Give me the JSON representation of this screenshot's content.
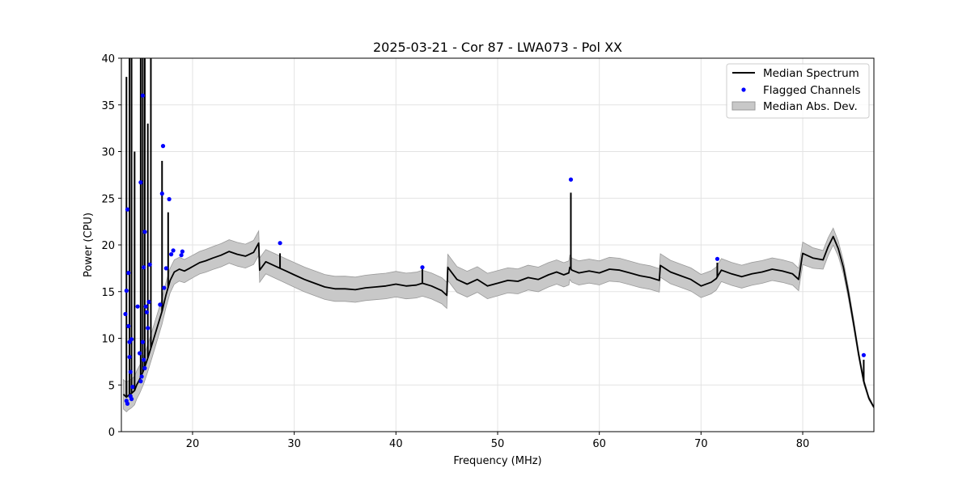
{
  "chart_data": {
    "type": "line",
    "title": "2025-03-21 - Cor 87 - LWA073 - Pol XX",
    "xlabel": "Frequency (MHz)",
    "ylabel": "Power (CPU)",
    "xlim": [
      13.0,
      87.0
    ],
    "ylim": [
      0,
      40
    ],
    "xticks": [
      20,
      30,
      40,
      50,
      60,
      70,
      80
    ],
    "yticks": [
      0,
      5,
      10,
      15,
      20,
      25,
      30,
      35,
      40
    ],
    "grid": true,
    "legend_position": "top-right",
    "legend": [
      "Median Spectrum",
      "Flagged Channels",
      "Median Abs. Dev."
    ],
    "colors": {
      "median": "#000000",
      "flagged": "#0000ff",
      "band": "#c8c8c8",
      "band_edge": "#9a9a9a"
    },
    "series": [
      {
        "name": "Median Spectrum",
        "x": [
          13.2,
          13.5,
          13.7,
          14.0,
          14.3,
          14.5,
          14.8,
          15.2,
          15.6,
          16.0,
          16.5,
          17.0,
          17.4,
          17.8,
          18.2,
          18.7,
          19.2,
          19.7,
          20.2,
          20.7,
          21.3,
          22.0,
          22.8,
          23.6,
          24.4,
          25.2,
          26.0,
          26.5,
          26.6,
          27.2,
          28.0,
          28.6,
          29.2,
          30.0,
          31.0,
          32.0,
          33.0,
          34.0,
          35.0,
          36.0,
          37.0,
          38.0,
          39.0,
          40.0,
          41.0,
          42.0,
          42.6,
          43.5,
          44.5,
          45.0,
          45.1,
          46.0,
          47.0,
          48.0,
          49.0,
          50.0,
          51.0,
          52.0,
          53.0,
          54.0,
          55.0,
          55.8,
          56.5,
          57.0,
          57.1,
          57.3,
          58.0,
          59.0,
          60.0,
          61.0,
          62.0,
          63.0,
          64.0,
          65.0,
          65.9,
          66.0,
          67.0,
          68.0,
          69.0,
          70.0,
          71.0,
          71.5,
          72.0,
          73.0,
          74.0,
          75.0,
          76.0,
          77.0,
          78.0,
          79.0,
          79.6,
          80.0,
          81.0,
          82.0,
          82.5,
          83.0,
          83.5,
          84.0,
          84.5,
          85.0,
          85.5,
          86.0,
          86.5,
          87.0
        ],
        "y": [
          4.0,
          3.7,
          3.9,
          4.1,
          4.4,
          5.0,
          5.6,
          6.6,
          7.9,
          9.3,
          11.1,
          12.9,
          14.7,
          16.2,
          17.1,
          17.4,
          17.2,
          17.5,
          17.8,
          18.1,
          18.3,
          18.6,
          18.9,
          19.3,
          19.0,
          18.8,
          19.2,
          20.2,
          17.3,
          18.2,
          17.8,
          17.5,
          17.2,
          16.8,
          16.3,
          15.9,
          15.5,
          15.3,
          15.3,
          15.2,
          15.4,
          15.5,
          15.6,
          15.8,
          15.6,
          15.7,
          15.9,
          15.6,
          15.1,
          14.6,
          17.6,
          16.3,
          15.8,
          16.3,
          15.6,
          15.9,
          16.2,
          16.1,
          16.5,
          16.3,
          16.8,
          17.1,
          16.8,
          17.0,
          17.6,
          17.3,
          17.0,
          17.2,
          17.0,
          17.4,
          17.3,
          17.0,
          16.7,
          16.5,
          16.2,
          17.8,
          17.1,
          16.7,
          16.3,
          15.6,
          16.0,
          16.4,
          17.3,
          16.9,
          16.6,
          16.9,
          17.1,
          17.4,
          17.2,
          16.9,
          16.3,
          19.1,
          18.6,
          18.4,
          19.8,
          20.9,
          19.6,
          17.6,
          14.8,
          11.6,
          8.3,
          5.4,
          3.6,
          2.6
        ],
        "spikes": [
          [
            13.5,
            38
          ],
          [
            13.8,
            40
          ],
          [
            14.0,
            40
          ],
          [
            14.3,
            30
          ],
          [
            14.9,
            40
          ],
          [
            15.1,
            40
          ],
          [
            15.3,
            40
          ],
          [
            15.6,
            33
          ],
          [
            15.9,
            40
          ],
          [
            17.0,
            29
          ],
          [
            17.6,
            23.5
          ],
          [
            28.6,
            19.1
          ],
          [
            42.6,
            17.5
          ],
          [
            57.2,
            25.6
          ],
          [
            71.6,
            18.1
          ],
          [
            86.0,
            7.7
          ]
        ]
      },
      {
        "name": "Flagged Channels",
        "points": [
          [
            13.4,
            12.6
          ],
          [
            13.5,
            15.1
          ],
          [
            13.6,
            23.8
          ],
          [
            13.7,
            17.0
          ],
          [
            13.7,
            11.3
          ],
          [
            13.8,
            9.6
          ],
          [
            13.8,
            8.0
          ],
          [
            13.9,
            6.4
          ],
          [
            14.0,
            9.9
          ],
          [
            14.1,
            4.8
          ],
          [
            13.5,
            3.3
          ],
          [
            13.6,
            3.0
          ],
          [
            14.0,
            3.5
          ],
          [
            13.9,
            3.8
          ],
          [
            14.9,
            26.7
          ],
          [
            15.1,
            36.0
          ],
          [
            15.2,
            17.6
          ],
          [
            15.3,
            21.4
          ],
          [
            15.4,
            13.4
          ],
          [
            15.5,
            12.8
          ],
          [
            15.6,
            11.1
          ],
          [
            15.7,
            13.9
          ],
          [
            15.8,
            17.9
          ],
          [
            15.2,
            7.7
          ],
          [
            15.3,
            6.8
          ],
          [
            15.0,
            5.9
          ],
          [
            14.9,
            5.4
          ],
          [
            14.8,
            8.4
          ],
          [
            15.1,
            9.6
          ],
          [
            14.6,
            13.4
          ],
          [
            16.8,
            13.6
          ],
          [
            17.0,
            25.5
          ],
          [
            17.1,
            30.6
          ],
          [
            17.2,
            15.4
          ],
          [
            17.4,
            17.5
          ],
          [
            17.7,
            24.9
          ],
          [
            17.9,
            19.0
          ],
          [
            18.1,
            19.4
          ],
          [
            18.9,
            18.9
          ],
          [
            19.0,
            19.3
          ],
          [
            28.6,
            20.2
          ],
          [
            42.6,
            17.6
          ],
          [
            57.2,
            27.0
          ],
          [
            71.6,
            18.5
          ],
          [
            86.0,
            8.2
          ]
        ]
      },
      {
        "name": "Median Abs. Dev.",
        "halfwidth_by_region": [
          [
            13.0,
            1.6
          ],
          [
            20.0,
            1.2
          ],
          [
            26.6,
            1.3
          ],
          [
            45.0,
            1.4
          ],
          [
            55.8,
            1.3
          ],
          [
            80.0,
            1.2
          ],
          [
            83.0,
            0.9
          ],
          [
            87.0,
            0.1
          ]
        ]
      }
    ]
  }
}
